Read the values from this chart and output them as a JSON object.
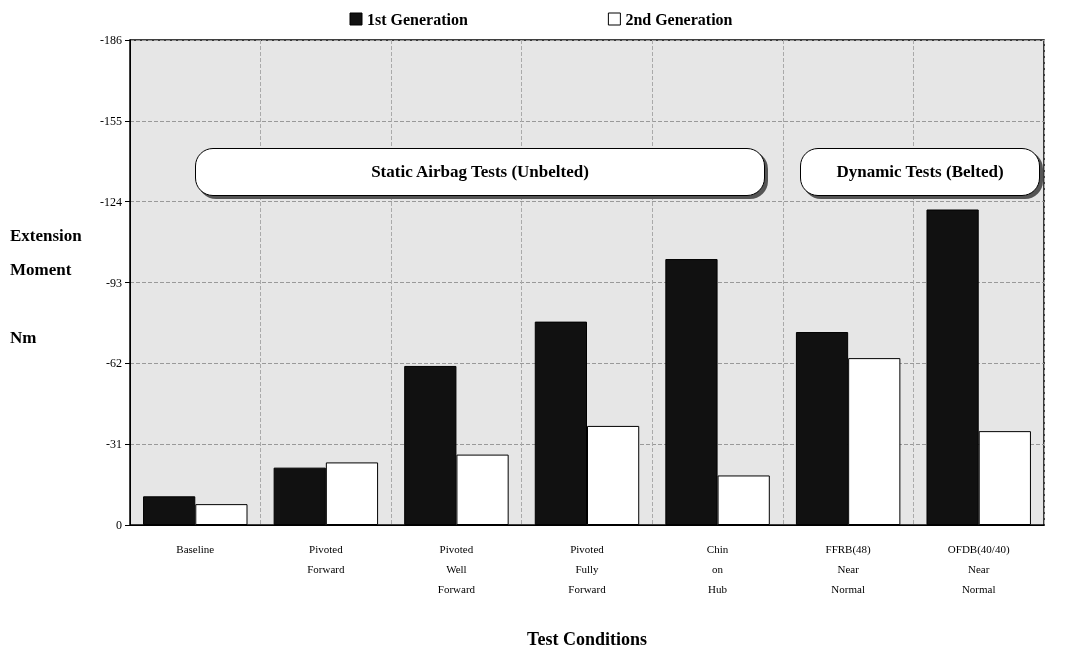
{
  "chart_data": {
    "type": "bar",
    "xlabel": "Test Conditions",
    "ylabel": "Extension Moment Nm",
    "categories": [
      "Baseline",
      "Pivoted\nForward",
      "Pivoted\nWell\nForward",
      "Pivoted\nFully\nForward",
      "Chin\non\nHub",
      "FFRB(48)\nNear\nNormal",
      "OFDB(40/40)\nNear\nNormal"
    ],
    "series": [
      {
        "name": "1st Generation",
        "color": "#111111",
        "values": [
          -11,
          -22,
          -61,
          -78,
          -102,
          -74,
          -121
        ]
      },
      {
        "name": "2nd Generation",
        "color": "#ffffff",
        "values": [
          -8,
          -24,
          -27,
          -38,
          -19,
          -64,
          -36
        ]
      }
    ],
    "ylim": [
      0,
      -186
    ],
    "yticks": [
      0,
      -31,
      -62,
      -93,
      -124,
      -155,
      -186
    ],
    "grid": true,
    "legend": "top",
    "annotations": [
      "Static Airbag Tests (Unbelted)",
      "Dynamic Tests (Belted)"
    ]
  }
}
